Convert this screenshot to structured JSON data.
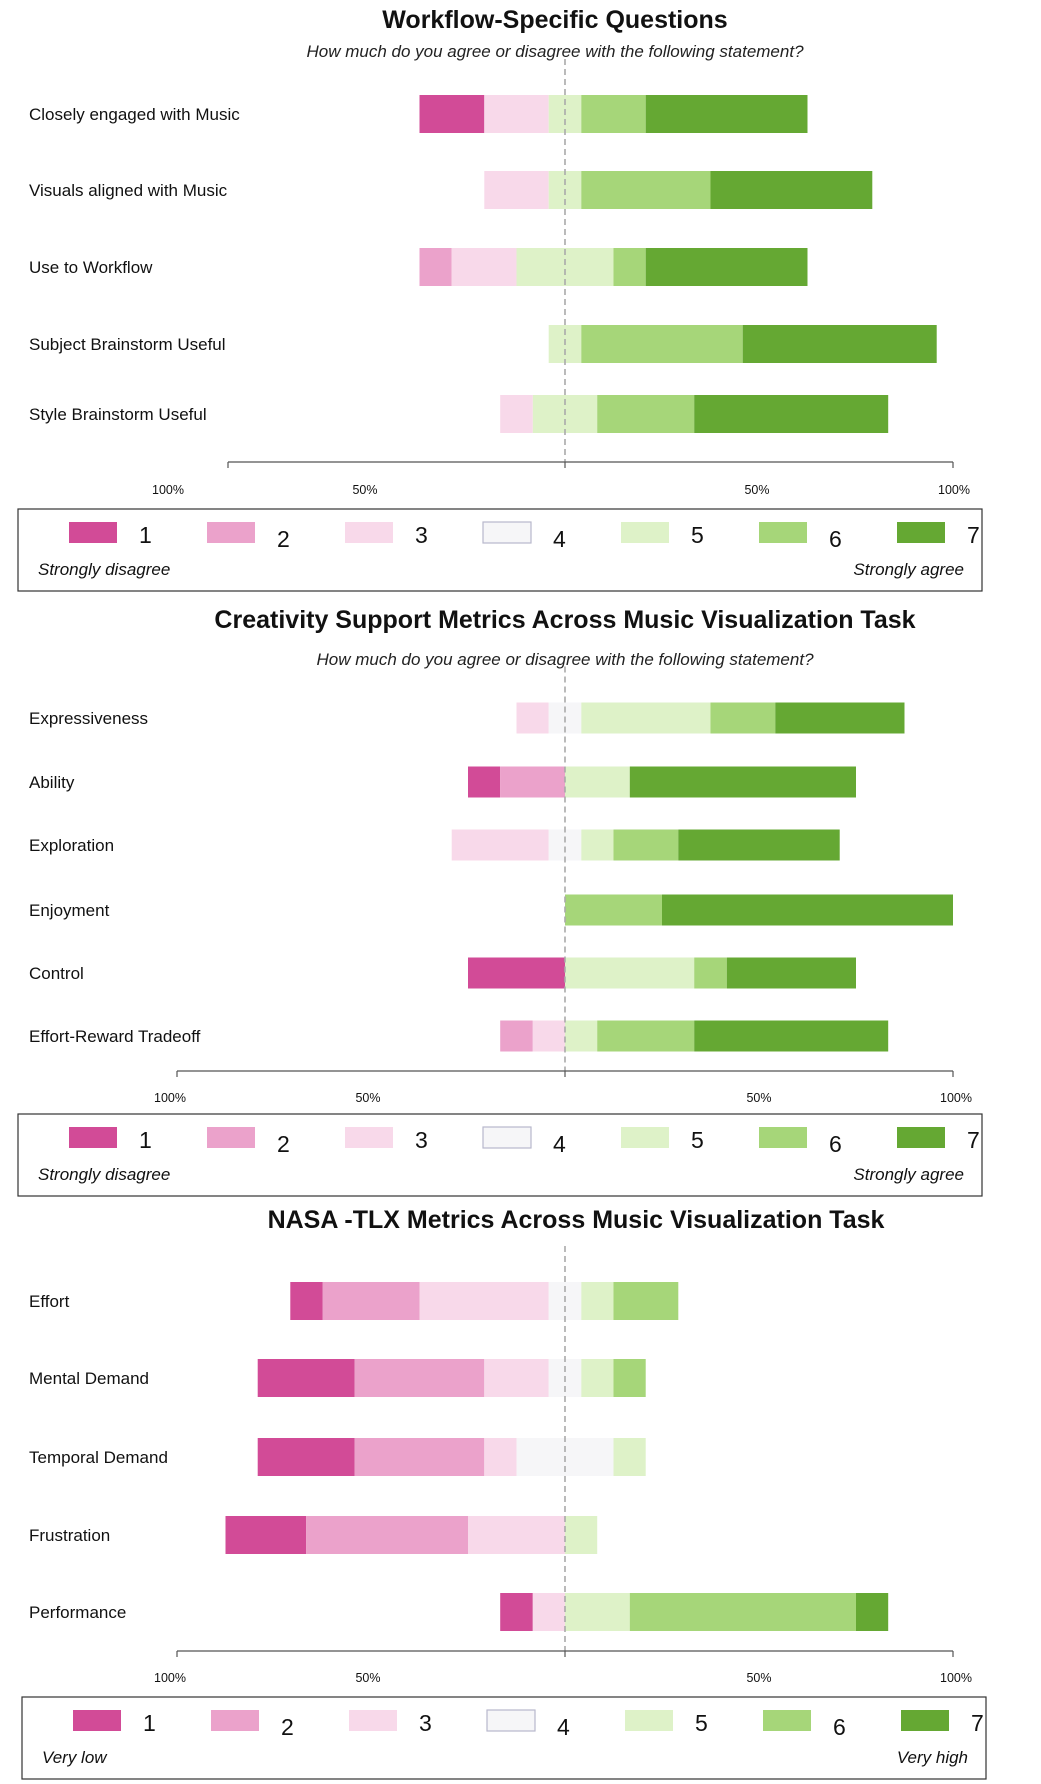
{
  "palette": {
    "1": "#d24b97",
    "2": "#eba2cb",
    "3": "#f8d9ea",
    "4": "#f6f6f8",
    "5": "#def2c8",
    "6": "#a6d679",
    "7": "#65a833"
  },
  "chart_data": [
    {
      "type": "bar",
      "orientation": "horizontal-diverging",
      "title": "Workflow-Specific Questions",
      "subtitle": "How much do you agree or disagree with the following statement?",
      "x_tick_labels": [
        "100%",
        "50%",
        "50%",
        "100%"
      ],
      "x_range": [
        -100,
        100
      ],
      "categories": [
        "Closely engaged with Music",
        "Visuals aligned with Music",
        "Use to Workflow",
        "Subject Brainstorm Useful",
        "Style Brainstorm Useful"
      ],
      "segments": [
        [
          {
            "level": 1,
            "from": -37.5,
            "to": -20.8
          },
          {
            "level": 3,
            "from": -20.8,
            "to": -4.2
          },
          {
            "level": 5,
            "from": -4.2,
            "to": 4.2
          },
          {
            "level": 6,
            "from": 4.2,
            "to": 20.8
          },
          {
            "level": 7,
            "from": 20.8,
            "to": 62.5
          }
        ],
        [
          {
            "level": 3,
            "from": -20.8,
            "to": -4.2
          },
          {
            "level": 5,
            "from": -4.2,
            "to": 4.2
          },
          {
            "level": 6,
            "from": 4.2,
            "to": 37.5
          },
          {
            "level": 7,
            "from": 37.5,
            "to": 79.2
          }
        ],
        [
          {
            "level": 2,
            "from": -37.5,
            "to": -29.2
          },
          {
            "level": 3,
            "from": -29.2,
            "to": -12.5
          },
          {
            "level": 5,
            "from": -12.5,
            "to": 12.5
          },
          {
            "level": 6,
            "from": 12.5,
            "to": 20.8
          },
          {
            "level": 7,
            "from": 20.8,
            "to": 62.5
          }
        ],
        [
          {
            "level": 5,
            "from": -4.2,
            "to": 4.2
          },
          {
            "level": 6,
            "from": 4.2,
            "to": 45.8
          },
          {
            "level": 7,
            "from": 45.8,
            "to": 95.8
          }
        ],
        [
          {
            "level": 3,
            "from": -16.7,
            "to": -8.3
          },
          {
            "level": 5,
            "from": -8.3,
            "to": 8.3
          },
          {
            "level": 6,
            "from": 8.3,
            "to": 33.3
          },
          {
            "level": 7,
            "from": 33.3,
            "to": 83.3
          }
        ]
      ],
      "legend": {
        "labels": [
          "1",
          "2",
          "3",
          "4",
          "5",
          "6",
          "7"
        ],
        "left_anchor": "Strongly disagree",
        "right_anchor": "Strongly agree",
        "placement": "bottom"
      }
    },
    {
      "type": "bar",
      "orientation": "horizontal-diverging",
      "title": "Creativity Support Metrics Across Music Visualization Task",
      "subtitle": "How much do you agree or disagree with the following statement?",
      "x_tick_labels": [
        "100%",
        "50%",
        "50%",
        "100%"
      ],
      "x_range": [
        -100,
        100
      ],
      "categories": [
        "Expressiveness",
        "Ability",
        "Exploration",
        "Enjoyment",
        "Control",
        "Effort-Reward Tradeoff"
      ],
      "segments": [
        [
          {
            "level": 3,
            "from": -12.5,
            "to": -4.2
          },
          {
            "level": 4,
            "from": -4.2,
            "to": 4.2
          },
          {
            "level": 5,
            "from": 4.2,
            "to": 37.5
          },
          {
            "level": 6,
            "from": 37.5,
            "to": 54.2
          },
          {
            "level": 7,
            "from": 54.2,
            "to": 87.5
          }
        ],
        [
          {
            "level": 1,
            "from": -25,
            "to": -16.7
          },
          {
            "level": 2,
            "from": -16.7,
            "to": 0
          },
          {
            "level": 5,
            "from": 0,
            "to": 16.7
          },
          {
            "level": 7,
            "from": 16.7,
            "to": 75
          }
        ],
        [
          {
            "level": 3,
            "from": -29.2,
            "to": -4.2
          },
          {
            "level": 4,
            "from": -4.2,
            "to": 4.2
          },
          {
            "level": 5,
            "from": 4.2,
            "to": 12.5
          },
          {
            "level": 6,
            "from": 12.5,
            "to": 29.2
          },
          {
            "level": 7,
            "from": 29.2,
            "to": 70.8
          }
        ],
        [
          {
            "level": 6,
            "from": 0,
            "to": 25
          },
          {
            "level": 7,
            "from": 25,
            "to": 100
          }
        ],
        [
          {
            "level": 1,
            "from": -25,
            "to": 0
          },
          {
            "level": 5,
            "from": 0,
            "to": 33.3
          },
          {
            "level": 6,
            "from": 33.3,
            "to": 41.7
          },
          {
            "level": 7,
            "from": 41.7,
            "to": 75
          }
        ],
        [
          {
            "level": 2,
            "from": -16.7,
            "to": -8.3
          },
          {
            "level": 3,
            "from": -8.3,
            "to": 0
          },
          {
            "level": 5,
            "from": 0,
            "to": 8.3
          },
          {
            "level": 6,
            "from": 8.3,
            "to": 33.3
          },
          {
            "level": 7,
            "from": 33.3,
            "to": 83.3
          }
        ]
      ],
      "legend": {
        "labels": [
          "1",
          "2",
          "3",
          "4",
          "5",
          "6",
          "7"
        ],
        "left_anchor": "Strongly disagree",
        "right_anchor": "Strongly agree",
        "placement": "bottom"
      }
    },
    {
      "type": "bar",
      "orientation": "horizontal-diverging",
      "title": "NASA -TLX Metrics Across Music Visualization Task",
      "subtitle": "",
      "x_tick_labels": [
        "100%",
        "50%",
        "50%",
        "100%"
      ],
      "x_range": [
        -100,
        100
      ],
      "categories": [
        "Effort",
        "Mental Demand",
        "Temporal Demand",
        "Frustration",
        "Performance"
      ],
      "segments": [
        [
          {
            "level": 1,
            "from": -70.8,
            "to": -62.5
          },
          {
            "level": 2,
            "from": -62.5,
            "to": -37.5
          },
          {
            "level": 3,
            "from": -37.5,
            "to": -4.2
          },
          {
            "level": 4,
            "from": -4.2,
            "to": 4.2
          },
          {
            "level": 5,
            "from": 4.2,
            "to": 12.5
          },
          {
            "level": 6,
            "from": 12.5,
            "to": 29.2
          }
        ],
        [
          {
            "level": 1,
            "from": -79.2,
            "to": -54.2
          },
          {
            "level": 2,
            "from": -54.2,
            "to": -20.8
          },
          {
            "level": 3,
            "from": -20.8,
            "to": -4.2
          },
          {
            "level": 4,
            "from": -4.2,
            "to": 4.2
          },
          {
            "level": 5,
            "from": 4.2,
            "to": 12.5
          },
          {
            "level": 6,
            "from": 12.5,
            "to": 20.8
          }
        ],
        [
          {
            "level": 1,
            "from": -79.2,
            "to": -54.2
          },
          {
            "level": 2,
            "from": -54.2,
            "to": -20.8
          },
          {
            "level": 3,
            "from": -20.8,
            "to": -12.5
          },
          {
            "level": 4,
            "from": -12.5,
            "to": 12.5
          },
          {
            "level": 5,
            "from": 12.5,
            "to": 20.8
          }
        ],
        [
          {
            "level": 1,
            "from": -87.5,
            "to": -66.7
          },
          {
            "level": 2,
            "from": -66.7,
            "to": -25
          },
          {
            "level": 3,
            "from": -25,
            "to": 0
          },
          {
            "level": 5,
            "from": 0,
            "to": 8.3
          }
        ],
        [
          {
            "level": 1,
            "from": -16.7,
            "to": -8.3
          },
          {
            "level": 3,
            "from": -8.3,
            "to": 0
          },
          {
            "level": 5,
            "from": 0,
            "to": 16.7
          },
          {
            "level": 6,
            "from": 16.7,
            "to": 75
          },
          {
            "level": 7,
            "from": 75,
            "to": 83.3
          }
        ]
      ],
      "legend": {
        "labels": [
          "1",
          "2",
          "3",
          "4",
          "5",
          "6",
          "7"
        ],
        "left_anchor": "Very low",
        "right_anchor": "Very high",
        "placement": "bottom"
      }
    }
  ]
}
